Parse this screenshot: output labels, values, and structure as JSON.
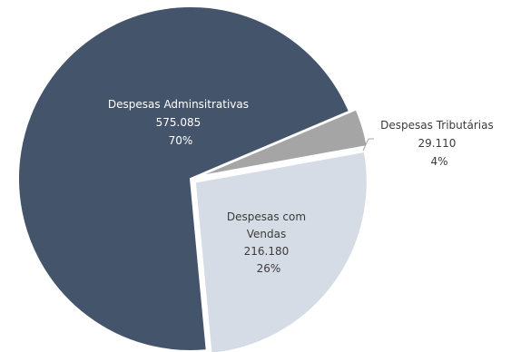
{
  "chart_data": {
    "type": "pie",
    "slices": [
      {
        "name": "Despesas Adminsitrativas",
        "value_label": "575.085",
        "value": 575085,
        "percent_label": "70%",
        "percent": 70,
        "color": "#44546a"
      },
      {
        "name": "Despesas Tributárias",
        "value_label": "29.110",
        "value": 29110,
        "percent_label": "4%",
        "percent": 4,
        "color": "#a5a5a5"
      },
      {
        "name": "Despesas com Vendas",
        "value_label": "216.180",
        "value": 216180,
        "percent_label": "26%",
        "percent": 26,
        "color": "#d6dce5"
      }
    ],
    "labels": {
      "admin": {
        "lines": [
          "Despesas Adminsitrativas",
          "575.085",
          "70%"
        ]
      },
      "tributarias": {
        "lines": [
          "Despesas Tributárias",
          "29.110",
          "4%"
        ]
      },
      "vendas": {
        "lines": [
          "Despesas com",
          "Vendas",
          "216.180",
          "26%"
        ]
      }
    }
  }
}
